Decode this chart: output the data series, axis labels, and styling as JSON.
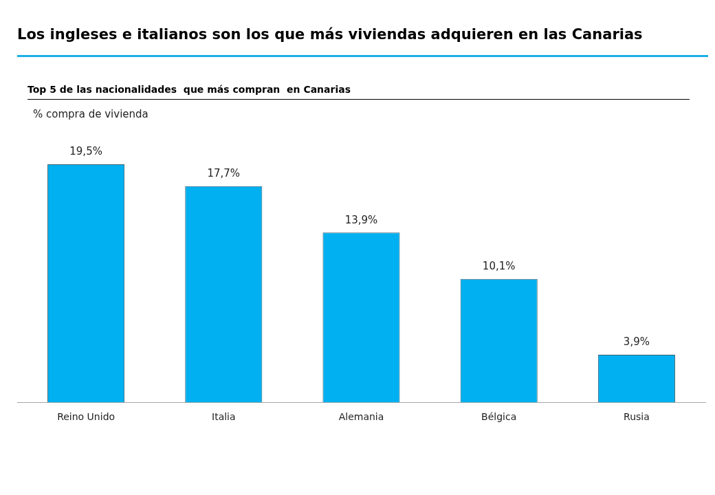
{
  "chart_data": {
    "type": "bar",
    "title": "Los ingleses e italianos son los que más viviendas adquieren en las Canarias",
    "subtitle": "Top 5 de las nacionalidades  que más compran  en Canarias",
    "ylabel": "% compra de vivienda",
    "categories": [
      "Reino Unido",
      "Italia",
      "Alemania",
      "Bélgica",
      "Rusia"
    ],
    "values": [
      19.5,
      17.7,
      13.9,
      10.1,
      3.9
    ],
    "value_labels": [
      "19,5%",
      "17,7%",
      "13,9%",
      "10,1%",
      "3,9%"
    ],
    "color": "#00b0f0",
    "grid": false,
    "legend": false
  }
}
